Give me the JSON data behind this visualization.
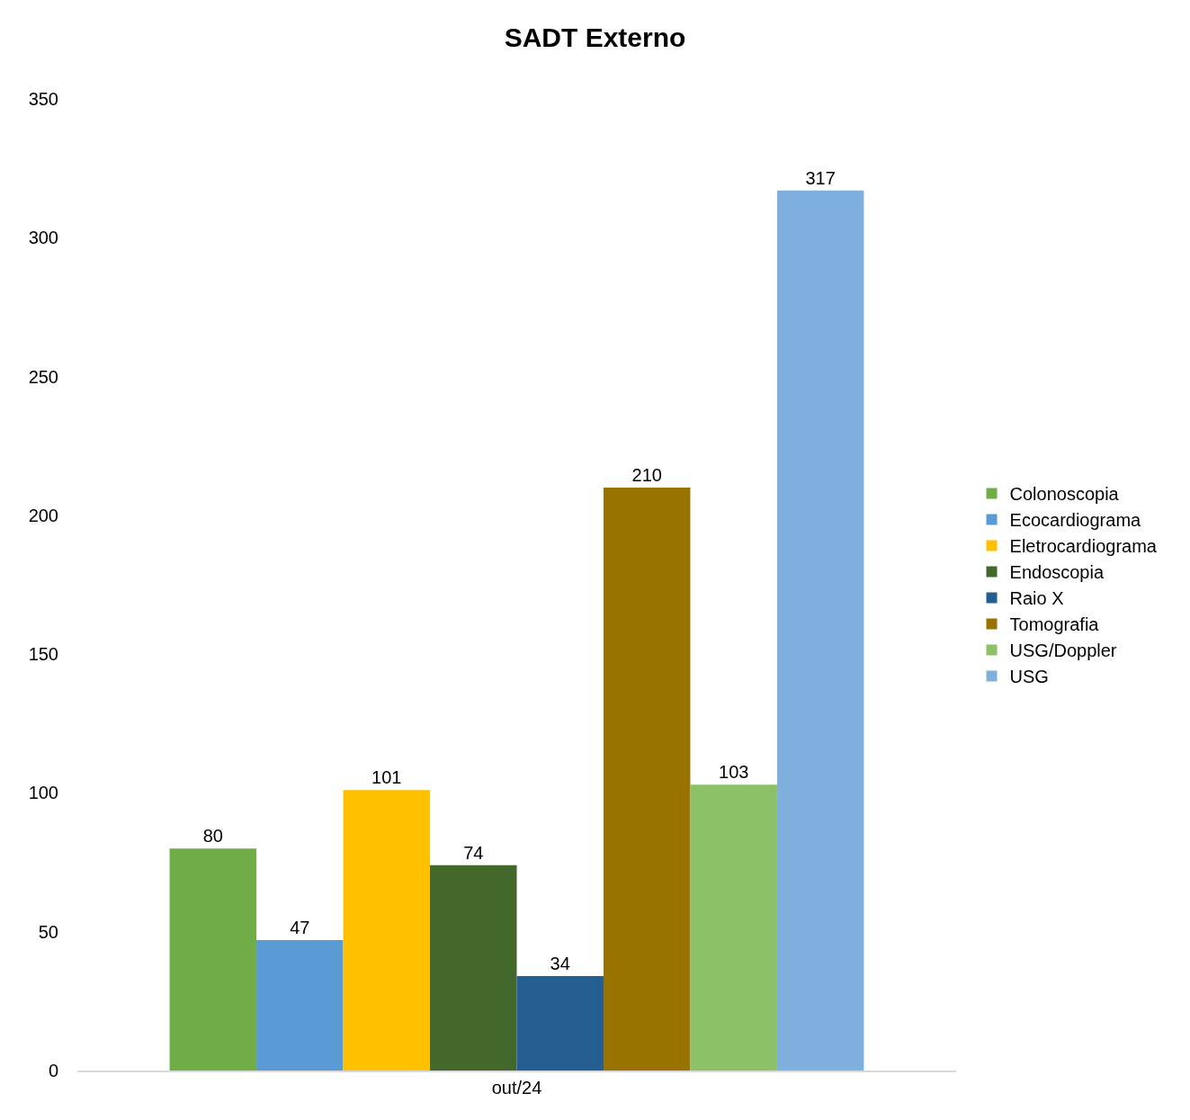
{
  "chart_data": {
    "type": "bar",
    "title": "SADT Externo",
    "categories": [
      "out/24"
    ],
    "series": [
      {
        "name": "Colonoscopia",
        "color": "#70ad47",
        "values": [
          80
        ]
      },
      {
        "name": "Ecocardiograma",
        "color": "#5b9bd5",
        "values": [
          47
        ]
      },
      {
        "name": "Eletrocardiograma",
        "color": "#ffc000",
        "values": [
          101
        ]
      },
      {
        "name": "Endoscopia",
        "color": "#43682b",
        "values": [
          74
        ]
      },
      {
        "name": "Raio X",
        "color": "#255e91",
        "values": [
          34
        ]
      },
      {
        "name": "Tomografia",
        "color": "#997300",
        "values": [
          210
        ]
      },
      {
        "name": "USG/Doppler",
        "color": "#8cc168",
        "values": [
          103
        ]
      },
      {
        "name": "USG",
        "color": "#7fafdd",
        "values": [
          317
        ]
      }
    ],
    "ylim": [
      0,
      350
    ],
    "yticks": [
      0,
      50,
      100,
      150,
      200,
      250,
      300,
      350
    ],
    "grid": false,
    "legend": "right",
    "data_labels": true
  }
}
